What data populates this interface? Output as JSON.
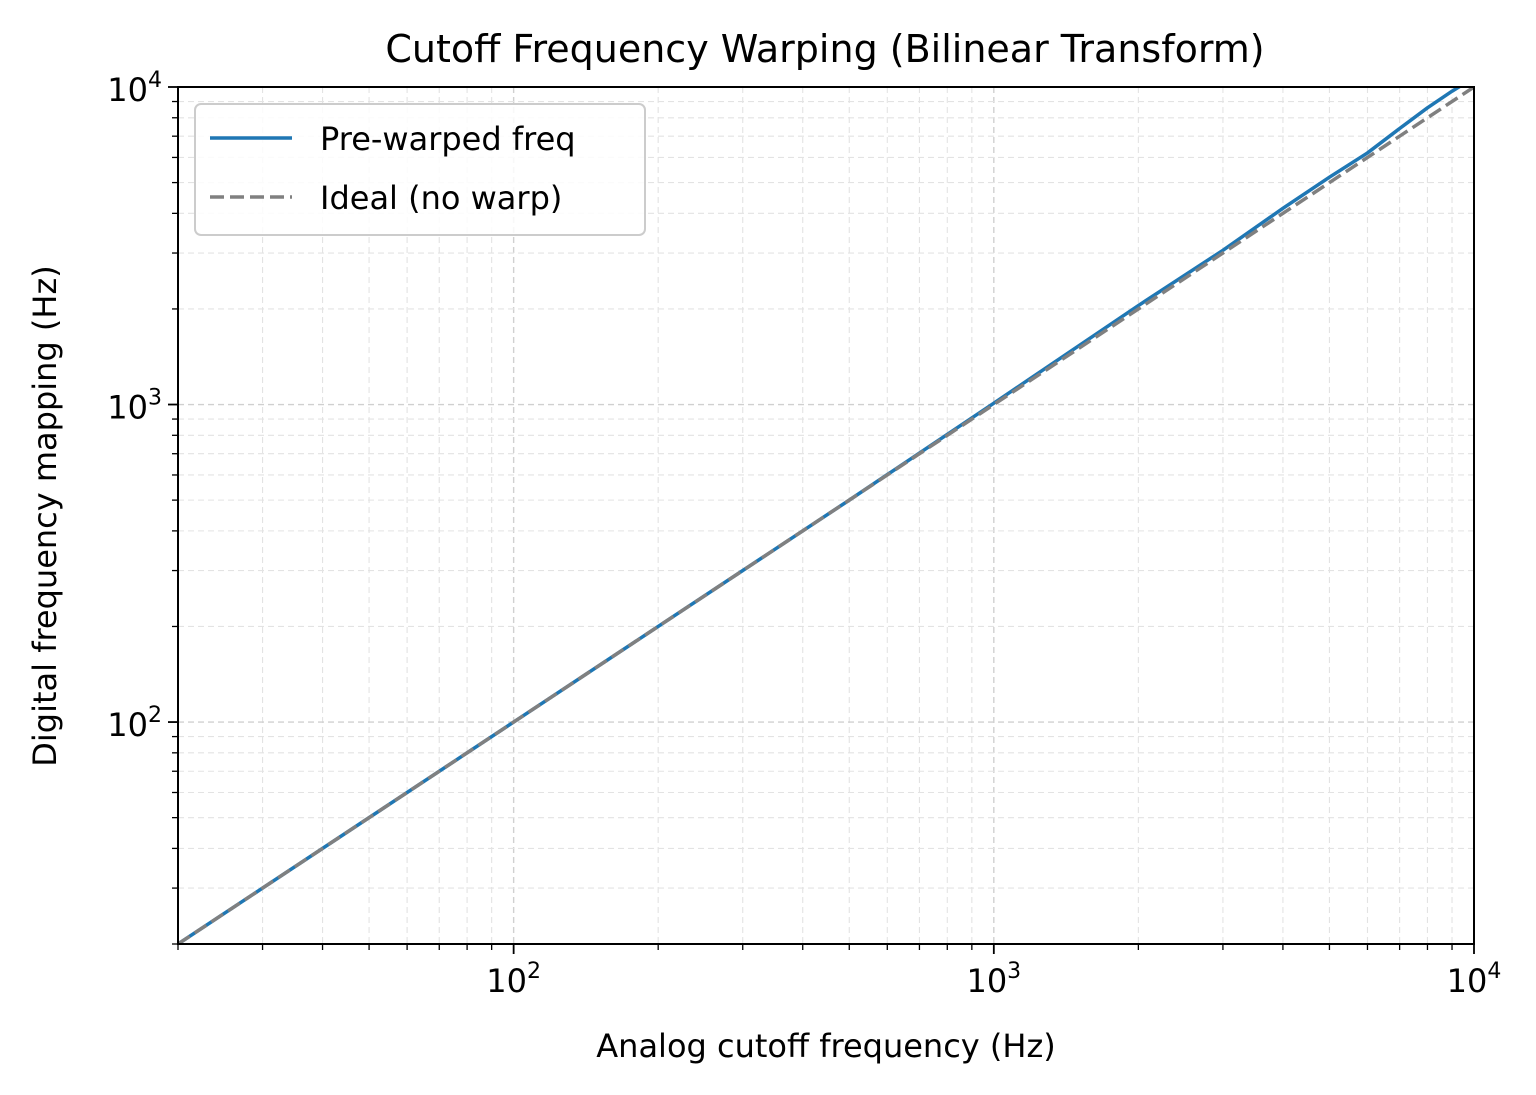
{
  "chart_data": {
    "type": "line",
    "title": "Cutoff Frequency Warping (Bilinear Transform)",
    "xlabel": "Analog cutoff frequency (Hz)",
    "ylabel": "Digital frequency mapping (Hz)",
    "xscale": "log",
    "yscale": "log",
    "xlim": [
      20,
      10000
    ],
    "ylim": [
      20,
      10000
    ],
    "x_ticks": [
      {
        "base": "10",
        "exp": "2",
        "value": 100
      },
      {
        "base": "10",
        "exp": "3",
        "value": 1000
      },
      {
        "base": "10",
        "exp": "4",
        "value": 10000
      }
    ],
    "y_ticks": [
      {
        "base": "10",
        "exp": "2",
        "value": 100
      },
      {
        "base": "10",
        "exp": "3",
        "value": 1000
      },
      {
        "base": "10",
        "exp": "4",
        "value": 10000
      }
    ],
    "grid": true,
    "grid_minor": true,
    "legend_position": "top-left",
    "series": [
      {
        "name": "Pre-warped freq",
        "color": "#1f77b4",
        "style": "solid",
        "x": [
          20,
          50,
          100,
          200,
          500,
          1000,
          2000,
          3000,
          4000,
          5000,
          6000,
          7000,
          8000,
          9000,
          9500
        ],
        "y": [
          20,
          50,
          100,
          200,
          500,
          1010,
          2050,
          3060,
          4150,
          5200,
          6200,
          7400,
          8600,
          9700,
          10200
        ]
      },
      {
        "name": "Ideal (no warp)",
        "color": "#808080",
        "style": "dashed",
        "x": [
          20,
          100,
          1000,
          10000
        ],
        "y": [
          20,
          100,
          1000,
          10000
        ]
      }
    ]
  }
}
